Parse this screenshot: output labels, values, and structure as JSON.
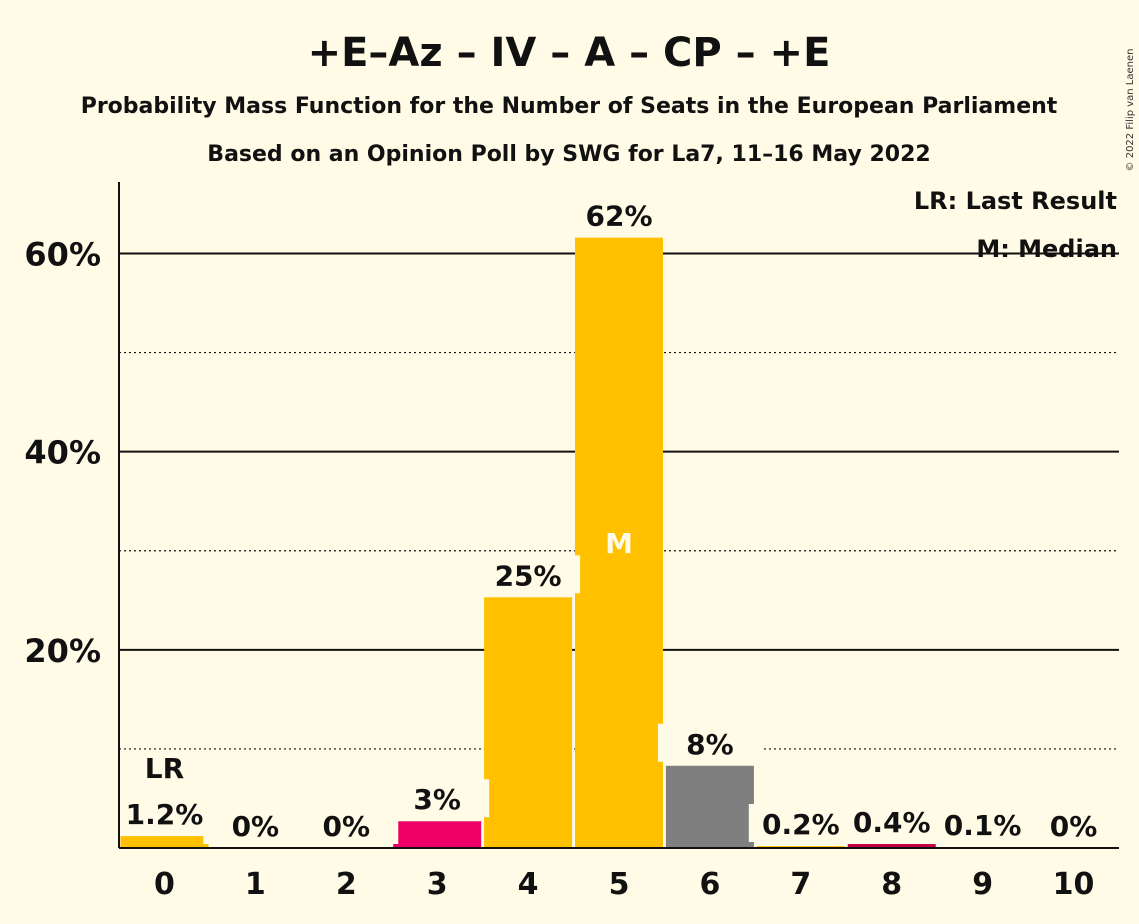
{
  "copyright": "© 2022 Filip van Laenen",
  "chart_data": {
    "type": "bar",
    "title": "+E–Az – IV – A – CP – +E",
    "subtitle": "Probability Mass Function for the Number of Seats in the European Parliament",
    "subtitle2": "Based on an Opinion Poll by SWG for La7, 11–16 May 2022",
    "categories": [
      "0",
      "1",
      "2",
      "3",
      "4",
      "5",
      "6",
      "7",
      "8",
      "9",
      "10"
    ],
    "values": [
      1.2,
      0,
      0,
      2.7,
      25.3,
      61.6,
      8.3,
      0.2,
      0.4,
      0.1,
      0
    ],
    "value_labels": [
      "1.2%",
      "0%",
      "0%",
      "3%",
      "25%",
      "62%",
      "8%",
      "0.2%",
      "0.4%",
      "0.1%",
      "0%"
    ],
    "bar_colors": [
      "#FFC000",
      "#FFC000",
      "#FFC000",
      "#EE0066",
      "#FFC000",
      "#FFC000",
      "#7F7F7F",
      "#FFC000",
      "#C0003F",
      "#FFC000",
      "#FFC000"
    ],
    "ylim": [
      0,
      67
    ],
    "y_ticks": [
      {
        "value": 20,
        "label": "20%"
      },
      {
        "value": 40,
        "label": "40%"
      },
      {
        "value": 60,
        "label": "60%"
      }
    ],
    "minor_gridlines": [
      10,
      30,
      50
    ],
    "last_result_index": 0,
    "last_result_marker": "LR",
    "median_index": 5,
    "median_marker": "M",
    "legend": {
      "placement": "top-right",
      "items": [
        "LR: Last Result",
        "M: Median"
      ]
    },
    "colors": {
      "background": "#FFFBE6",
      "primary": "#FFC000",
      "text": "#111111"
    }
  }
}
